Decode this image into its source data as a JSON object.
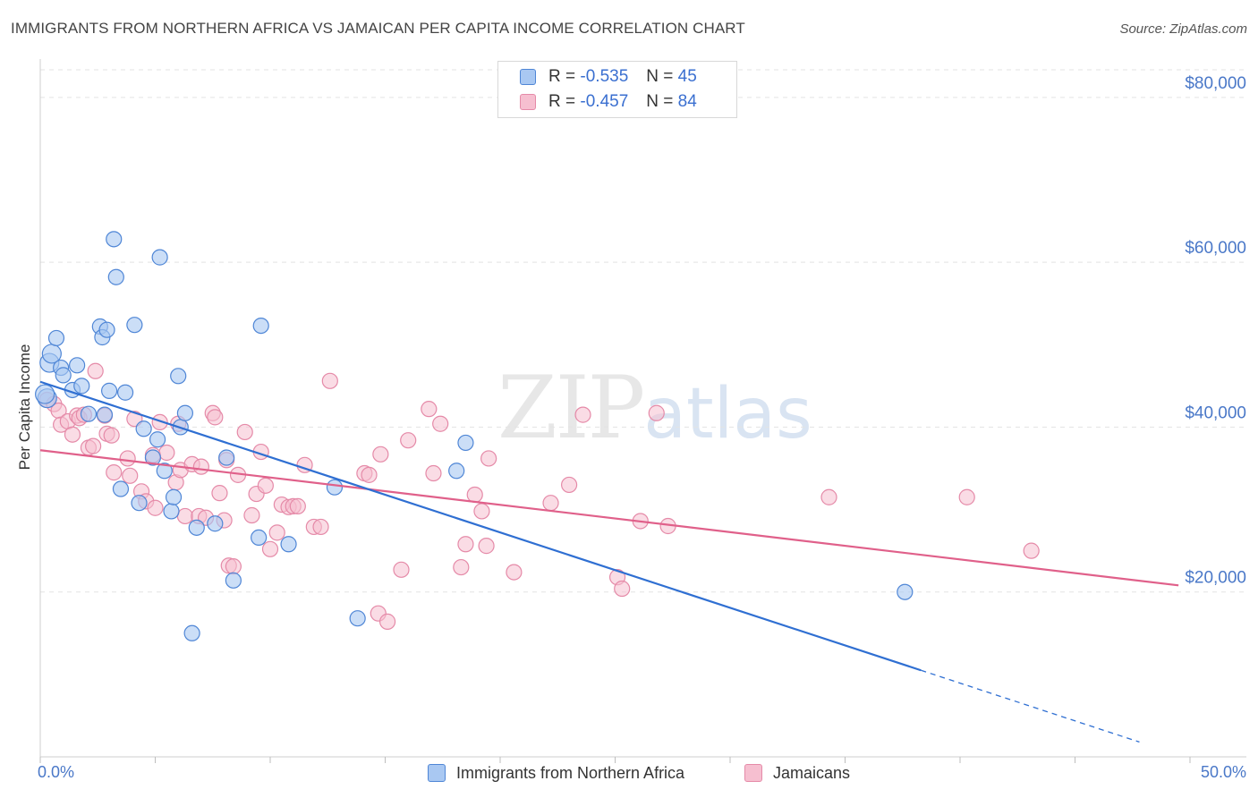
{
  "title": "IMMIGRANTS FROM NORTHERN AFRICA VS JAMAICAN PER CAPITA INCOME CORRELATION CHART",
  "source": "Source: ZipAtlas.com",
  "watermark": {
    "zip": "ZIP",
    "atlas": "atlas"
  },
  "legend": {
    "r_label": "R =",
    "n_label": "N =",
    "series1": {
      "r": "-0.535",
      "n": "45"
    },
    "series2": {
      "r": "-0.457",
      "n": "84"
    }
  },
  "colors": {
    "series1_fill": "#a9c8f2",
    "series1_stroke": "#4f86d6",
    "series1_line": "#2f6fd2",
    "series2_fill": "#f6bfd0",
    "series2_stroke": "#e58aa8",
    "series2_line": "#e0608a",
    "axis_text": "#4a78c8"
  },
  "chart_data": {
    "type": "scatter",
    "xlabel": "",
    "ylabel": "Per Capita Income",
    "xlim": [
      0,
      50
    ],
    "ylim": [
      0,
      84000
    ],
    "x_tick_labels": [
      "0.0%",
      "50.0%"
    ],
    "y_ticks": [
      20000,
      40000,
      60000,
      80000
    ],
    "y_tick_labels": [
      "$20,000",
      "$40,000",
      "$60,000",
      "$80,000"
    ],
    "grid": true,
    "legend_position": "top-center",
    "series": [
      {
        "name": "Immigrants from Northern Africa",
        "trend": {
          "x": [
            0,
            38.3
          ],
          "y": [
            45500,
            10500
          ],
          "dashed_extension": {
            "x": [
              38.3,
              47.8
            ],
            "y": [
              10500,
              1800
            ]
          }
        },
        "points": [
          [
            0.3,
            43500
          ],
          [
            0.4,
            47800
          ],
          [
            0.5,
            48900
          ],
          [
            0.7,
            50800
          ],
          [
            0.9,
            47200
          ],
          [
            1.0,
            46300
          ],
          [
            1.4,
            44500
          ],
          [
            1.6,
            47500
          ],
          [
            1.8,
            45000
          ],
          [
            2.1,
            41600
          ],
          [
            2.6,
            52200
          ],
          [
            2.7,
            50900
          ],
          [
            2.8,
            41500
          ],
          [
            2.9,
            51800
          ],
          [
            3.0,
            44400
          ],
          [
            3.2,
            62800
          ],
          [
            3.3,
            58200
          ],
          [
            3.5,
            32500
          ],
          [
            3.7,
            44200
          ],
          [
            4.1,
            52400
          ],
          [
            4.3,
            30800
          ],
          [
            4.5,
            39800
          ],
          [
            4.9,
            36300
          ],
          [
            5.1,
            38500
          ],
          [
            5.2,
            60600
          ],
          [
            5.4,
            34700
          ],
          [
            5.7,
            29800
          ],
          [
            5.8,
            31500
          ],
          [
            6.0,
            46200
          ],
          [
            6.1,
            40000
          ],
          [
            6.3,
            41700
          ],
          [
            6.6,
            15000
          ],
          [
            6.8,
            27800
          ],
          [
            7.6,
            28300
          ],
          [
            8.1,
            36300
          ],
          [
            8.4,
            21400
          ],
          [
            9.5,
            26600
          ],
          [
            9.6,
            52300
          ],
          [
            10.8,
            25800
          ],
          [
            12.8,
            32700
          ],
          [
            13.8,
            16800
          ],
          [
            18.1,
            34700
          ],
          [
            18.5,
            38100
          ],
          [
            37.6,
            20000
          ],
          [
            0.2,
            44000
          ]
        ]
      },
      {
        "name": "Jamaicans",
        "trend": {
          "x": [
            0,
            49.5
          ],
          "y": [
            37200,
            20800
          ]
        },
        "points": [
          [
            0.3,
            43300
          ],
          [
            0.6,
            42800
          ],
          [
            0.8,
            42000
          ],
          [
            0.9,
            40300
          ],
          [
            1.2,
            40700
          ],
          [
            1.4,
            39100
          ],
          [
            1.6,
            41400
          ],
          [
            1.7,
            41100
          ],
          [
            1.9,
            41500
          ],
          [
            2.1,
            37500
          ],
          [
            2.3,
            37700
          ],
          [
            2.4,
            46800
          ],
          [
            2.8,
            41400
          ],
          [
            2.9,
            39200
          ],
          [
            3.1,
            39000
          ],
          [
            3.2,
            34500
          ],
          [
            3.8,
            36200
          ],
          [
            3.9,
            34100
          ],
          [
            4.1,
            41000
          ],
          [
            4.4,
            32200
          ],
          [
            4.6,
            31000
          ],
          [
            4.9,
            36600
          ],
          [
            5.0,
            30200
          ],
          [
            5.2,
            40600
          ],
          [
            5.5,
            36900
          ],
          [
            5.9,
            33300
          ],
          [
            6.0,
            40400
          ],
          [
            6.1,
            34800
          ],
          [
            6.3,
            29200
          ],
          [
            6.6,
            35500
          ],
          [
            6.9,
            29200
          ],
          [
            7.0,
            35200
          ],
          [
            7.2,
            29000
          ],
          [
            7.5,
            41700
          ],
          [
            7.6,
            41200
          ],
          [
            7.8,
            32000
          ],
          [
            8.0,
            28700
          ],
          [
            8.1,
            36000
          ],
          [
            8.2,
            23200
          ],
          [
            8.4,
            23100
          ],
          [
            8.6,
            34200
          ],
          [
            8.9,
            39400
          ],
          [
            9.2,
            29300
          ],
          [
            9.4,
            31900
          ],
          [
            9.6,
            37000
          ],
          [
            9.8,
            32900
          ],
          [
            10.0,
            25200
          ],
          [
            10.3,
            27200
          ],
          [
            10.5,
            30600
          ],
          [
            10.8,
            30300
          ],
          [
            11.0,
            30400
          ],
          [
            11.2,
            30400
          ],
          [
            11.5,
            35400
          ],
          [
            11.9,
            27900
          ],
          [
            12.2,
            27900
          ],
          [
            12.6,
            45600
          ],
          [
            14.1,
            34400
          ],
          [
            14.3,
            34200
          ],
          [
            14.7,
            17400
          ],
          [
            14.8,
            36700
          ],
          [
            15.1,
            16400
          ],
          [
            15.7,
            22700
          ],
          [
            16.0,
            38400
          ],
          [
            16.9,
            42200
          ],
          [
            17.1,
            34400
          ],
          [
            17.4,
            40400
          ],
          [
            18.3,
            23000
          ],
          [
            18.5,
            25800
          ],
          [
            18.9,
            31800
          ],
          [
            19.2,
            29800
          ],
          [
            19.4,
            25600
          ],
          [
            19.5,
            36200
          ],
          [
            20.6,
            22400
          ],
          [
            22.2,
            30800
          ],
          [
            23.0,
            33000
          ],
          [
            23.6,
            41500
          ],
          [
            25.1,
            21800
          ],
          [
            25.3,
            20400
          ],
          [
            26.1,
            28600
          ],
          [
            26.8,
            41700
          ],
          [
            27.3,
            28000
          ],
          [
            34.3,
            31500
          ],
          [
            40.3,
            31500
          ],
          [
            43.1,
            25000
          ]
        ]
      }
    ]
  }
}
